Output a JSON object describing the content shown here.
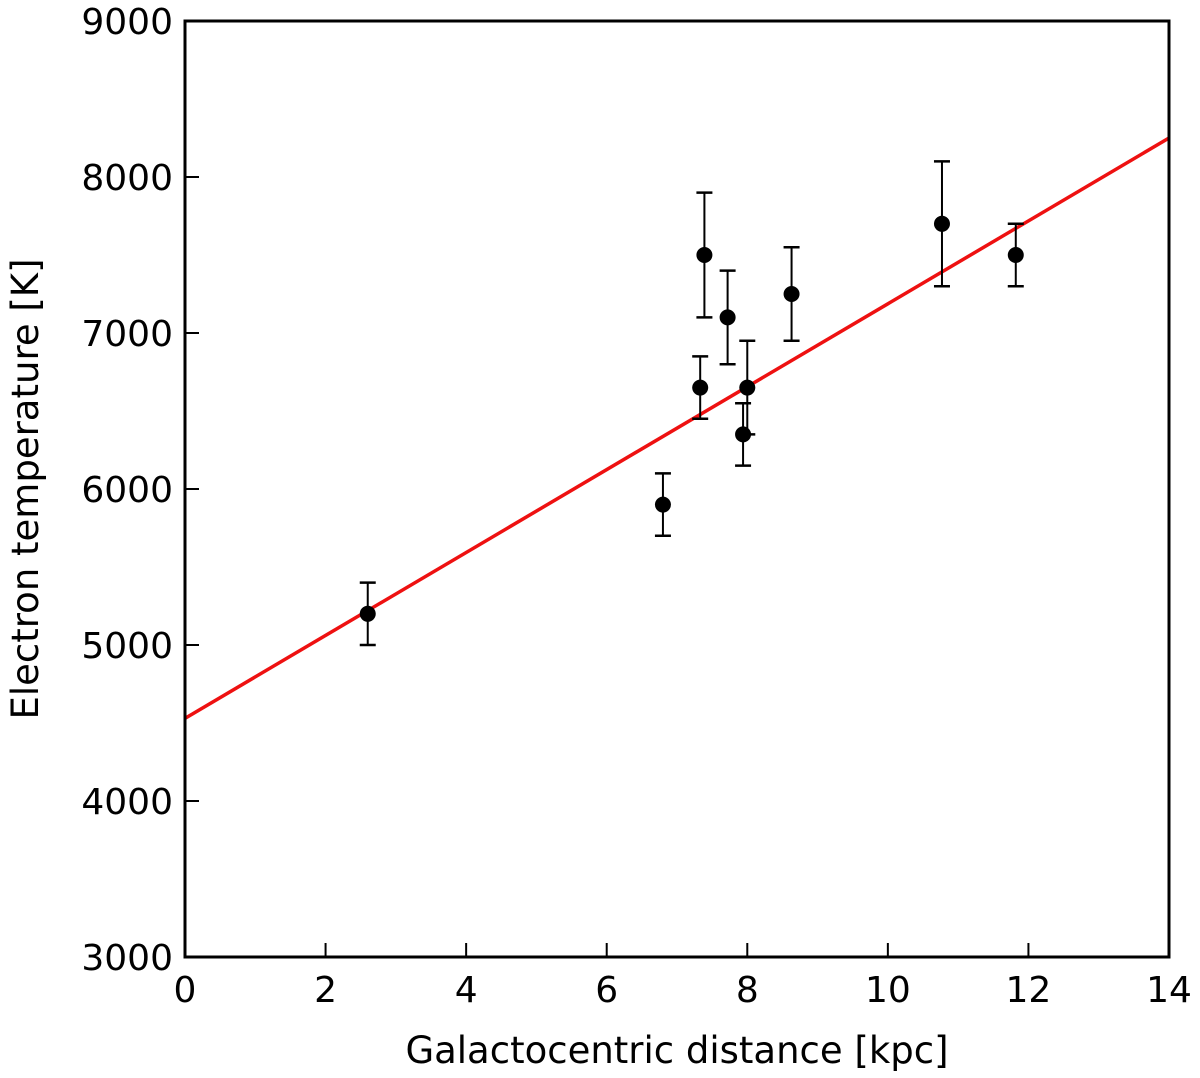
{
  "chart_data": {
    "type": "scatter",
    "title": "",
    "xlabel": "Galactocentric distance [kpc]",
    "ylabel": "Electron temperature [K]",
    "xlim": [
      0,
      14
    ],
    "ylim": [
      3000,
      9000
    ],
    "xticks": [
      0,
      2,
      4,
      6,
      8,
      10,
      12,
      14
    ],
    "yticks": [
      3000,
      4000,
      5000,
      6000,
      7000,
      8000,
      9000
    ],
    "grid": false,
    "legend": "none",
    "series": [
      {
        "kind": "points-with-errorbars",
        "color": "#000000",
        "points": [
          {
            "x": 2.6,
            "y": 5200,
            "err": 200
          },
          {
            "x": 6.8,
            "y": 5900,
            "err": 200
          },
          {
            "x": 7.33,
            "y": 6650,
            "err": 200
          },
          {
            "x": 7.39,
            "y": 7500,
            "err": 400
          },
          {
            "x": 7.72,
            "y": 7100,
            "err": 300
          },
          {
            "x": 7.94,
            "y": 6350,
            "err": 200
          },
          {
            "x": 8.0,
            "y": 6650,
            "err": 300
          },
          {
            "x": 8.63,
            "y": 7250,
            "err": 300
          },
          {
            "x": 10.77,
            "y": 7700,
            "err": 400
          },
          {
            "x": 11.82,
            "y": 7500,
            "err": 200
          }
        ]
      },
      {
        "kind": "fit-line",
        "color": "#ee1111",
        "x": [
          0,
          14
        ],
        "y": [
          4530,
          8250
        ]
      }
    ]
  }
}
